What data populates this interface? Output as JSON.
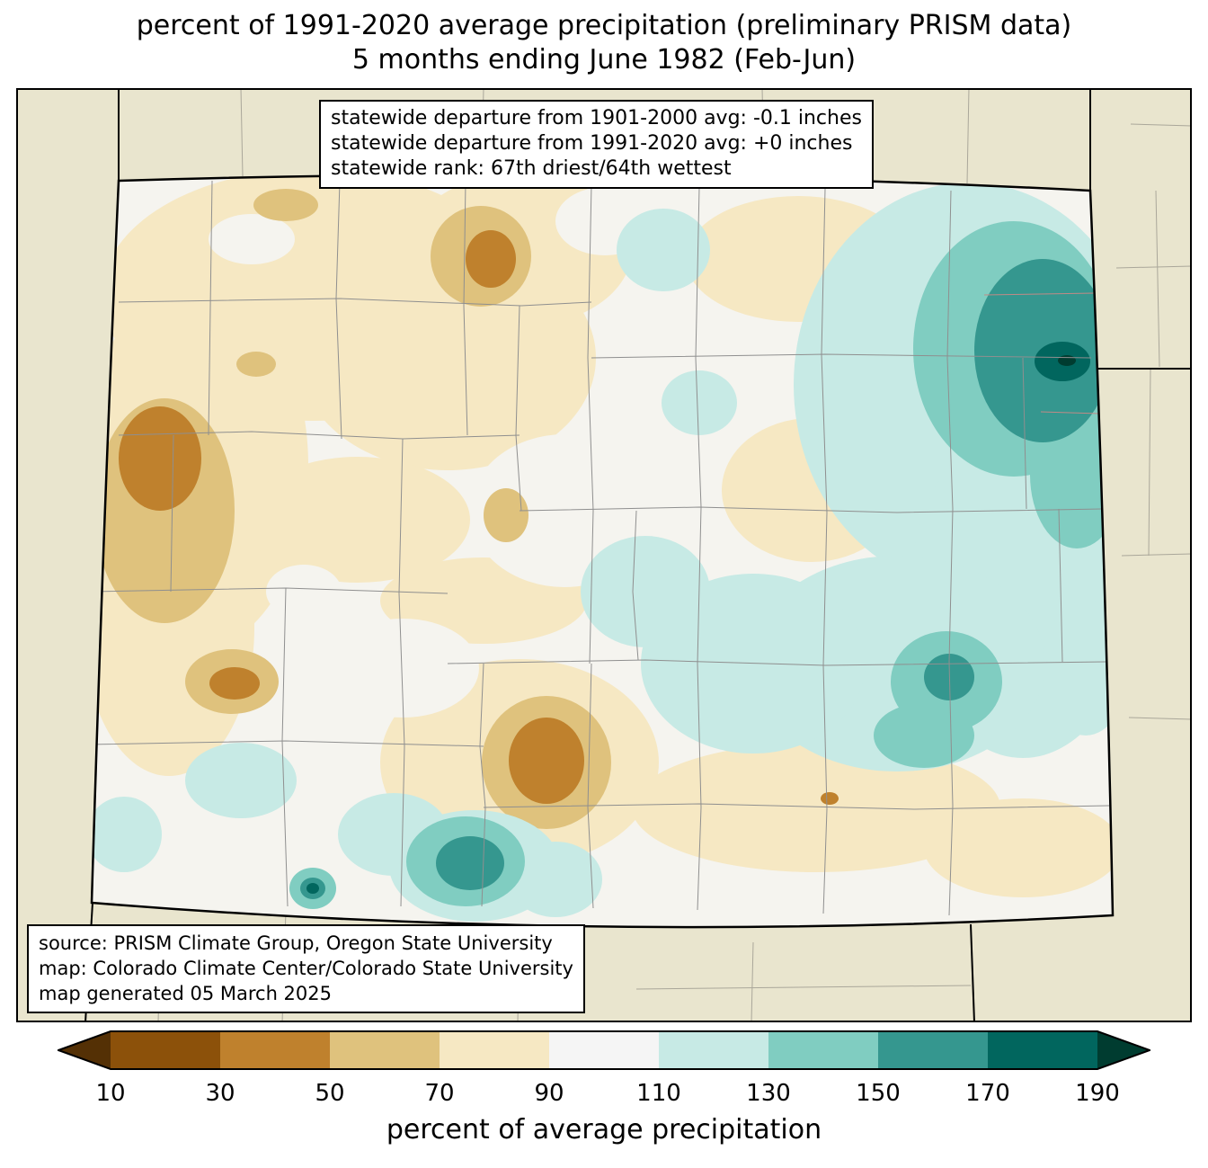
{
  "title": {
    "line1": "percent of 1991-2020 average precipitation (preliminary PRISM data)",
    "line2": "5 months ending June 1982 (Feb-Jun)"
  },
  "stats_box": {
    "lines": [
      "statewide departure from 1901-2000 avg: -0.1 inches",
      "statewide departure from 1991-2020 avg: +0 inches",
      "statewide rank: 67th driest/64th wettest"
    ]
  },
  "source_box": {
    "lines": [
      "source: PRISM Climate Group, Oregon State University",
      "map: Colorado Climate Center/Colorado State University",
      "map generated 05 March 2025"
    ]
  },
  "colorbar": {
    "label": "percent of average precipitation",
    "ticks": [
      "10",
      "30",
      "50",
      "70",
      "90",
      "110",
      "130",
      "150",
      "170",
      "190"
    ],
    "segment_colors": [
      "#8c510a",
      "#bf812d",
      "#dfc27d",
      "#f6e8c3",
      "#f5f5f5",
      "#c7eae5",
      "#80cdc1",
      "#35978f",
      "#01665e"
    ],
    "left_arrow_color": "#543005",
    "right_arrow_color": "#003c30"
  },
  "map": {
    "background_color": "#e9e5ce",
    "state_fill": "#f5f4ef",
    "county_line_color": "#8f8f8f",
    "state_border_color": "#000000"
  }
}
